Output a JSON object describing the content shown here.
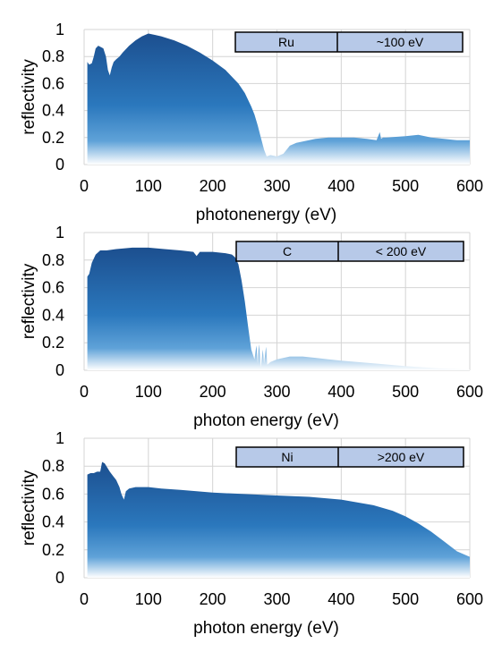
{
  "chart_data": [
    {
      "type": "area",
      "xlabel": "photonenergy (eV)",
      "ylabel": "reflectivity",
      "xlim": [
        0,
        600
      ],
      "ylim": [
        0,
        1
      ],
      "x_ticks": [
        "0",
        "100",
        "200",
        "300",
        "400",
        "500",
        "600"
      ],
      "y_ticks": [
        "0",
        "0.2",
        "0.4",
        "0.6",
        "0.8",
        "1"
      ],
      "grid": true,
      "legend_box": [
        "Ru",
        "~100 eV"
      ],
      "series": [
        {
          "x": [
            5,
            8,
            12,
            15,
            18,
            22,
            26,
            30,
            34,
            37,
            40,
            43,
            46,
            50,
            55,
            60,
            70,
            80,
            90,
            100,
            110,
            120,
            140,
            160,
            180,
            200,
            220,
            240,
            250,
            260,
            265,
            270,
            275,
            280,
            284,
            290,
            300,
            310,
            320,
            330,
            340,
            360,
            380,
            400,
            420,
            440,
            455,
            460,
            462,
            465,
            470,
            500,
            520,
            540,
            560,
            580,
            600
          ],
          "values": [
            0.76,
            0.74,
            0.75,
            0.8,
            0.86,
            0.88,
            0.87,
            0.86,
            0.8,
            0.7,
            0.66,
            0.72,
            0.76,
            0.78,
            0.8,
            0.83,
            0.88,
            0.92,
            0.95,
            0.97,
            0.96,
            0.95,
            0.92,
            0.88,
            0.83,
            0.77,
            0.7,
            0.6,
            0.53,
            0.43,
            0.37,
            0.29,
            0.2,
            0.11,
            0.06,
            0.07,
            0.06,
            0.08,
            0.14,
            0.16,
            0.17,
            0.19,
            0.2,
            0.2,
            0.2,
            0.19,
            0.18,
            0.24,
            0.19,
            0.2,
            0.2,
            0.21,
            0.22,
            0.2,
            0.19,
            0.18,
            0.18
          ]
        }
      ]
    },
    {
      "type": "area",
      "xlabel": "photon energy (eV)",
      "ylabel": "reflectivity",
      "xlim": [
        0,
        600
      ],
      "ylim": [
        0,
        1
      ],
      "x_ticks": [
        "0",
        "100",
        "200",
        "300",
        "400",
        "500",
        "600"
      ],
      "y_ticks": [
        "0",
        "0.2",
        "0.4",
        "0.6",
        "0.8",
        "1"
      ],
      "grid": true,
      "legend_box": [
        "C",
        "< 200 eV"
      ],
      "series": [
        {
          "x": [
            5,
            8,
            12,
            18,
            25,
            35,
            50,
            75,
            100,
            125,
            150,
            170,
            175,
            180,
            200,
            220,
            230,
            235,
            240,
            245,
            250,
            255,
            260,
            265,
            268,
            270,
            272,
            275,
            278,
            280,
            283,
            285,
            290,
            300,
            320,
            340,
            360,
            380,
            400,
            450,
            500,
            550,
            600
          ],
          "values": [
            0.68,
            0.7,
            0.78,
            0.84,
            0.87,
            0.87,
            0.88,
            0.89,
            0.89,
            0.88,
            0.87,
            0.86,
            0.83,
            0.86,
            0.86,
            0.85,
            0.84,
            0.82,
            0.77,
            0.65,
            0.5,
            0.32,
            0.15,
            0.08,
            0.18,
            0.05,
            0.19,
            0.02,
            0.15,
            0.05,
            0.17,
            0.04,
            0.06,
            0.08,
            0.1,
            0.1,
            0.09,
            0.08,
            0.07,
            0.05,
            0.03,
            0.015,
            0.005
          ]
        }
      ]
    },
    {
      "type": "area",
      "xlabel": "photon energy (eV)",
      "ylabel": "reflectivity",
      "xlim": [
        0,
        600
      ],
      "ylim": [
        0,
        1
      ],
      "x_ticks": [
        "0",
        "100",
        "200",
        "300",
        "400",
        "500",
        "600"
      ],
      "y_ticks": [
        "0",
        "0.2",
        "0.4",
        "0.6",
        "0.8",
        "1"
      ],
      "grid": true,
      "legend_box": [
        "Ni",
        ">200 eV"
      ],
      "series": [
        {
          "x": [
            5,
            10,
            15,
            20,
            25,
            28,
            32,
            40,
            50,
            55,
            58,
            62,
            65,
            70,
            80,
            100,
            120,
            150,
            200,
            250,
            300,
            350,
            400,
            450,
            480,
            500,
            520,
            540,
            560,
            580,
            600
          ],
          "values": [
            0.74,
            0.75,
            0.75,
            0.76,
            0.76,
            0.83,
            0.82,
            0.76,
            0.7,
            0.65,
            0.6,
            0.56,
            0.62,
            0.64,
            0.65,
            0.65,
            0.64,
            0.63,
            0.61,
            0.6,
            0.59,
            0.58,
            0.56,
            0.52,
            0.48,
            0.44,
            0.39,
            0.33,
            0.26,
            0.19,
            0.15
          ]
        }
      ]
    }
  ]
}
